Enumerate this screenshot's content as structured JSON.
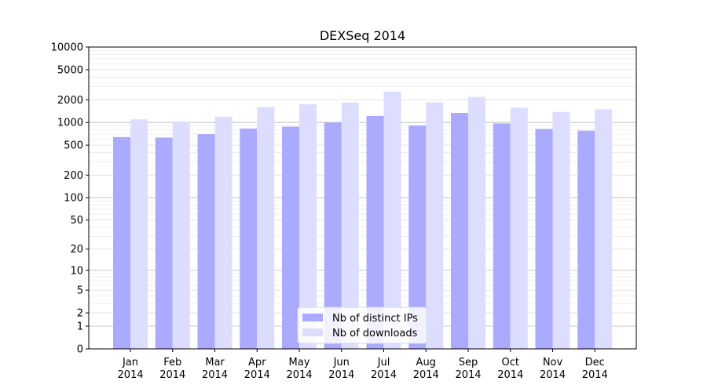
{
  "chart_data": {
    "type": "bar",
    "title": "DEXSeq 2014",
    "xlabel": "",
    "ylabel": "",
    "y_scale": "log (value + 1)",
    "ylim": [
      0,
      10000
    ],
    "y_ticks": [
      0,
      1,
      2,
      5,
      10,
      20,
      50,
      100,
      200,
      500,
      1000,
      2000,
      5000,
      10000
    ],
    "grid": true,
    "legend_position": "bottom-center",
    "categories": [
      "Jan 2014",
      "Feb 2014",
      "Mar 2014",
      "Apr 2014",
      "May 2014",
      "Jun 2014",
      "Jul 2014",
      "Aug 2014",
      "Sep 2014",
      "Oct 2014",
      "Nov 2014",
      "Dec 2014"
    ],
    "category_lines": [
      [
        "Jan",
        "2014"
      ],
      [
        "Feb",
        "2014"
      ],
      [
        "Mar",
        "2014"
      ],
      [
        "Apr",
        "2014"
      ],
      [
        "May",
        "2014"
      ],
      [
        "Jun",
        "2014"
      ],
      [
        "Jul",
        "2014"
      ],
      [
        "Aug",
        "2014"
      ],
      [
        "Sep",
        "2014"
      ],
      [
        "Oct",
        "2014"
      ],
      [
        "Nov",
        "2014"
      ],
      [
        "Dec",
        "2014"
      ]
    ],
    "series": [
      {
        "name": "Nb of distinct IPs",
        "color": "#aaaaff",
        "values": [
          640,
          630,
          700,
          830,
          880,
          1000,
          1220,
          910,
          1340,
          970,
          820,
          780
        ]
      },
      {
        "name": "Nb of downloads",
        "color": "#ddddff",
        "values": [
          1100,
          1030,
          1190,
          1600,
          1740,
          1840,
          2560,
          1850,
          2180,
          1570,
          1380,
          1490
        ]
      }
    ]
  }
}
